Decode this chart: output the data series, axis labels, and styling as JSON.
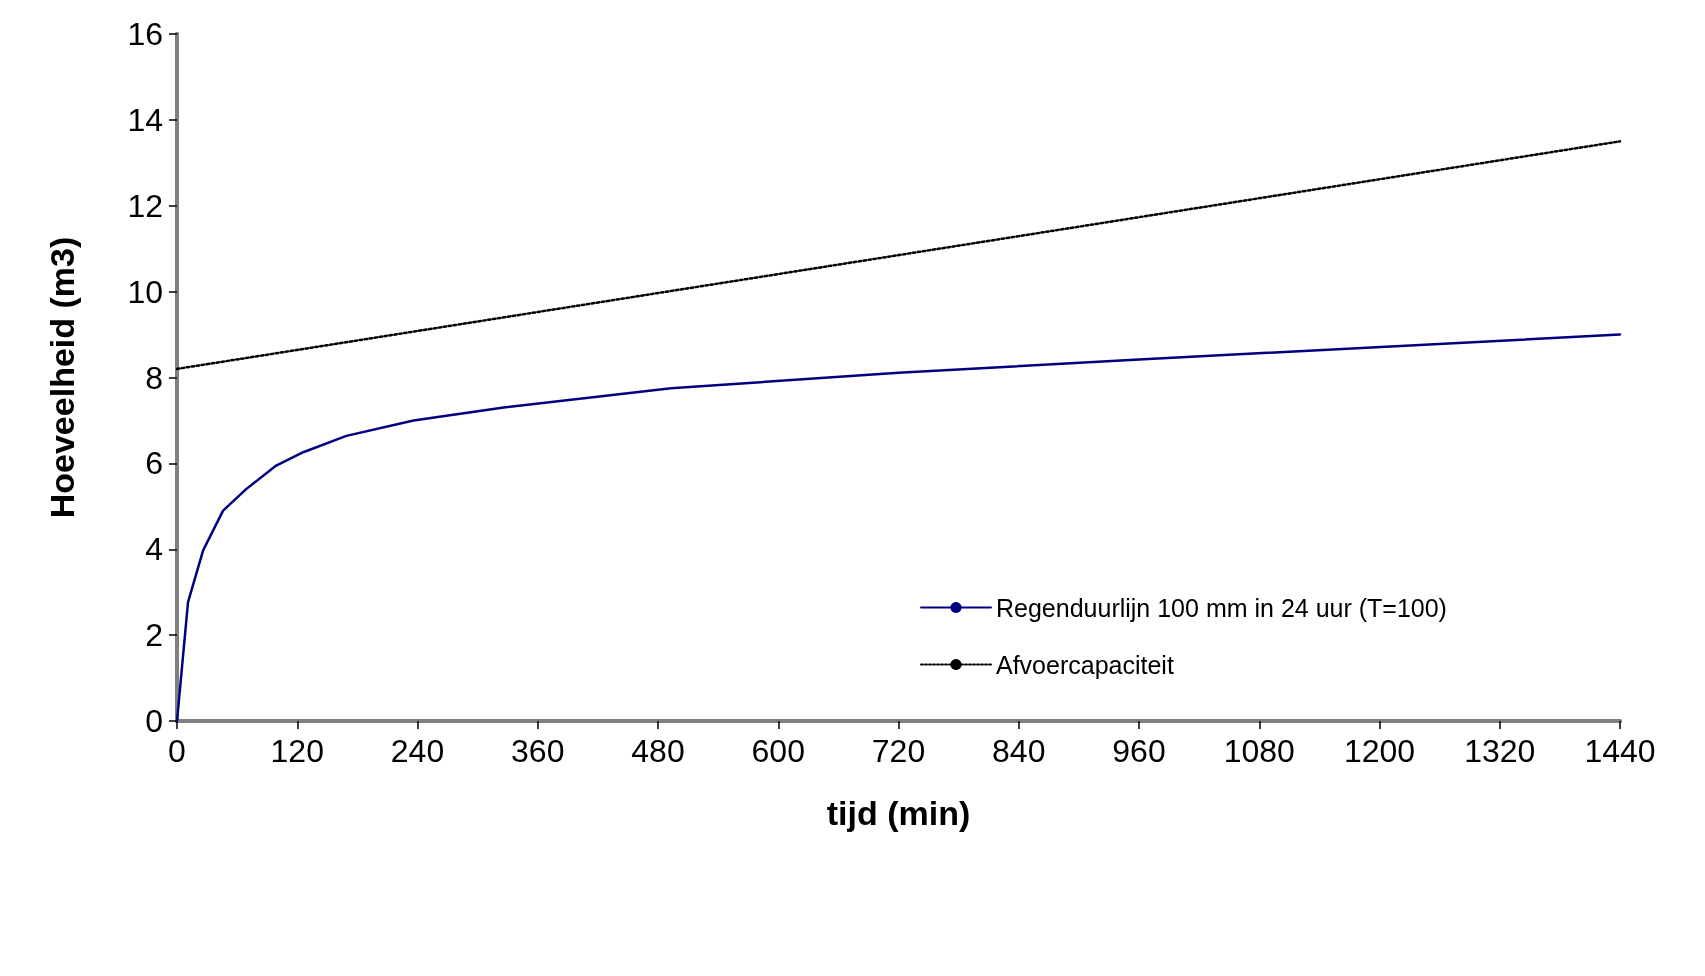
{
  "chart_data": {
    "type": "line",
    "xlabel": "tijd (min)",
    "ylabel": "Hoeveelheid (m3)",
    "xlim": [
      0,
      1440
    ],
    "xticks": [
      0,
      120,
      240,
      360,
      480,
      600,
      720,
      840,
      960,
      1080,
      1200,
      1320,
      1440
    ],
    "ylim": [
      0,
      16
    ],
    "yticks": [
      0,
      2,
      4,
      6,
      8,
      10,
      12,
      14,
      16
    ],
    "grid": false,
    "legend": "bottom right",
    "marker": "none",
    "series": [
      {
        "name": "Regenduurlijn 100 mm in 24 uur (T=100)",
        "color": "#000080",
        "line_style": "solid",
        "x": [
          0,
          11,
          26,
          46,
          69,
          99,
          126,
          169,
          236,
          326,
          493,
          720,
          960,
          1440
        ],
        "values": [
          0,
          2.77,
          3.97,
          4.9,
          5.4,
          5.95,
          6.26,
          6.64,
          7.0,
          7.3,
          7.75,
          8.11,
          8.42,
          9.0
        ]
      },
      {
        "name": "Afvoercapaciteit",
        "color": "#000000",
        "line_style": "dotted",
        "x": [
          0,
          1440
        ],
        "values": [
          8.2,
          13.5
        ]
      }
    ]
  }
}
